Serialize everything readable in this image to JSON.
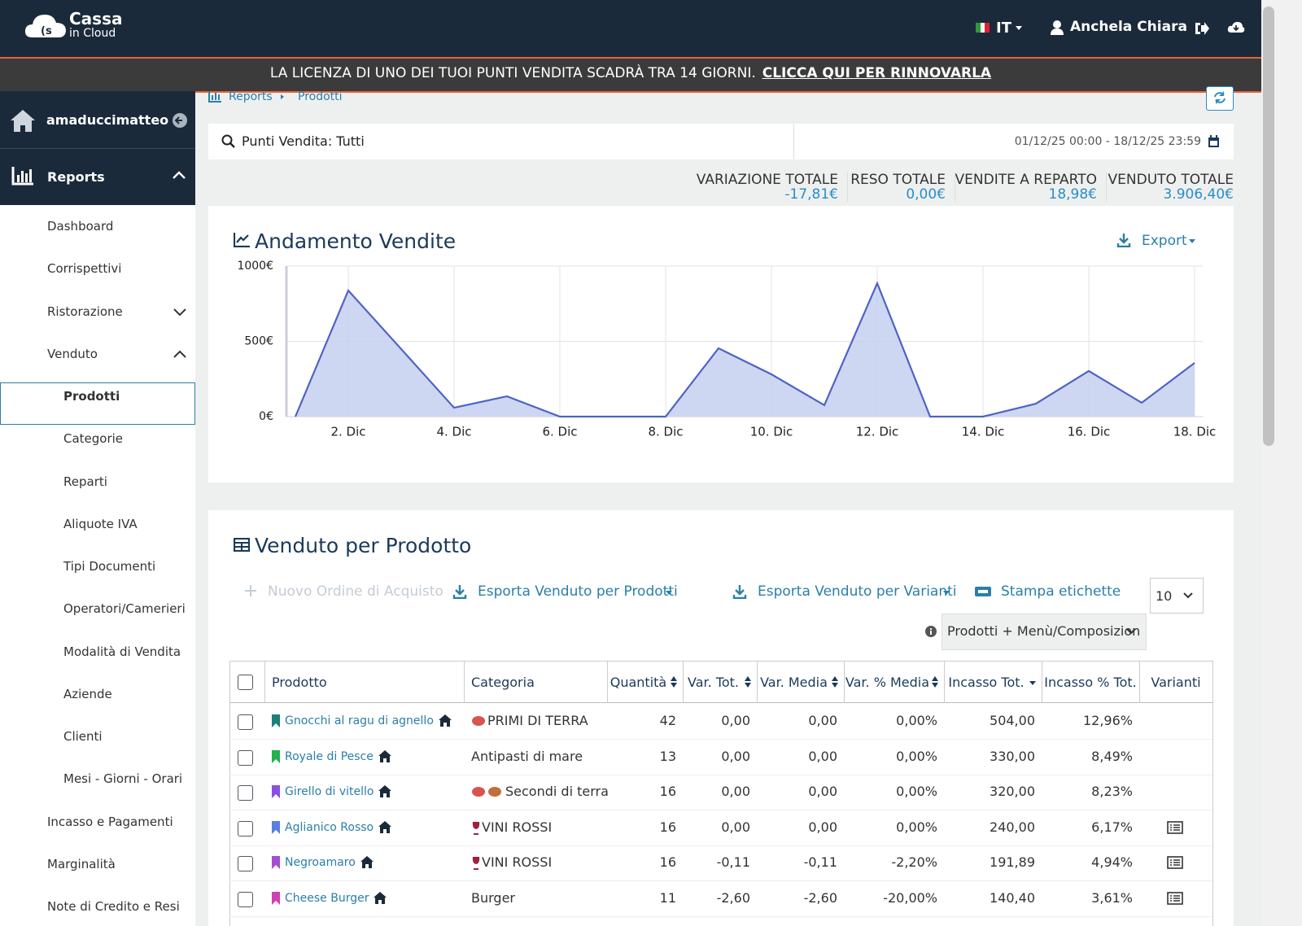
{
  "header": {
    "brand": "Cassa",
    "brand_sub": "in Cloud",
    "language": "IT",
    "user": "Anchela Chiara"
  },
  "banner": {
    "text": "LA LICENZA DI UNO DEI TUOI PUNTI VENDITA SCADRÀ TRA 14 GIORNI.",
    "link": "CLICCA QUI PER RINNOVARLA"
  },
  "sidebar": {
    "account": "amaduccimatteo",
    "section": "Reports",
    "items": [
      {
        "label": "Dashboard"
      },
      {
        "label": "Corrispettivi"
      },
      {
        "label": "Ristorazione",
        "expanded": false
      },
      {
        "label": "Venduto",
        "expanded": true,
        "children": [
          "Prodotti",
          "Categorie",
          "Reparti",
          "Aliquote IVA",
          "Tipi Documenti",
          "Operatori/Camerieri",
          "Modalità di Vendita",
          "Aziende",
          "Clienti",
          "Mesi - Giorni - Orari"
        ]
      },
      {
        "label": "Incasso e Pagamenti"
      },
      {
        "label": "Marginalità"
      },
      {
        "label": "Note di Credito e Resi"
      }
    ]
  },
  "breadcrumb": [
    "Reports",
    "Prodotti"
  ],
  "filter": {
    "search": "Punti Vendita: Tutti",
    "range": "01/12/25 00:00 - 18/12/25 23:59"
  },
  "totals": [
    {
      "label": "VARIAZIONE TOTALE",
      "value": "-17,81€"
    },
    {
      "label": "RESO TOTALE",
      "value": "0,00€"
    },
    {
      "label": "VENDITE A REPARTO",
      "value": "18,98€"
    },
    {
      "label": "VENDUTO TOTALE",
      "value": "3.906,40€"
    }
  ],
  "chart_panel": {
    "export": "Export"
  },
  "chart_data": {
    "type": "area",
    "title": "Andamento Vendite",
    "categories": [
      null,
      "2. Dic",
      null,
      "4. Dic",
      null,
      "6. Dic",
      null,
      "8. Dic",
      null,
      "10. Dic",
      null,
      "12. Dic",
      null,
      "14. Dic",
      null,
      "16. Dic",
      null,
      "18. Dic"
    ],
    "values": [
      0,
      838,
      449,
      59,
      135,
      0,
      0,
      0,
      454,
      281,
      76,
      886,
      0,
      0,
      86,
      303,
      92,
      357
    ],
    "color": "#4f63c4",
    "fill": "#c6d0f0",
    "ylim": [
      0,
      1000
    ],
    "yticks": [
      {
        "value": 0,
        "label": "0€"
      },
      {
        "value": 500,
        "label": "500€"
      },
      {
        "value": 1000,
        "label": "1000€"
      }
    ],
    "grid": true
  },
  "table": {
    "title": "Venduto per Prodotto",
    "actions": [
      "Nuovo Ordine di Acquisto",
      "Esporta Venduto per Prodotti",
      "Esporta Venduto per Varianti",
      "Stampa etichette"
    ],
    "page_size": "10",
    "view": "Prodotti + Menù/Composizion",
    "columns": [
      {
        "label": "Prodotto"
      },
      {
        "label": "Categoria"
      },
      {
        "label": "Quantità",
        "sort": "both"
      },
      {
        "label": "Var. Tot.",
        "sort": "both"
      },
      {
        "label": "Var. Media",
        "sort": "both"
      },
      {
        "label": "Var. % Media",
        "sort": "both"
      },
      {
        "label": "Incasso Tot.",
        "sort": "desc"
      },
      {
        "label": "Incasso % Tot."
      },
      {
        "label": "Varianti"
      }
    ],
    "rows": [
      {
        "color": "#1a7f7a",
        "variants": false,
        "cells": [
          "Gnocchi al ragu di agnello",
          "PRIMI DI TERRA",
          "42",
          "0,00",
          "0,00",
          "0,00%",
          "504,00",
          "12,96%"
        ]
      },
      {
        "color": "#22b14c",
        "variants": false,
        "cells": [
          "Royale di Pesce",
          "Antipasti di mare",
          "13",
          "0,00",
          "0,00",
          "0,00%",
          "330,00",
          "8,49%"
        ]
      },
      {
        "color": "#8a4fe0",
        "variants": false,
        "cells": [
          "Girello di vitello",
          "Secondi di terra",
          "16",
          "0,00",
          "0,00",
          "0,00%",
          "320,00",
          "8,23%"
        ]
      },
      {
        "color": "#5b7fe0",
        "variants": true,
        "cells": [
          "Aglianico Rosso",
          "VINI ROSSI",
          "16",
          "0,00",
          "0,00",
          "0,00%",
          "240,00",
          "6,17%"
        ]
      },
      {
        "color": "#a54fd0",
        "variants": true,
        "cells": [
          "Negroamaro",
          "VINI ROSSI",
          "16",
          "-0,11",
          "-0,11",
          "-2,20%",
          "191,89",
          "4,94%"
        ]
      },
      {
        "color": "#d040b0",
        "variants": true,
        "cells": [
          "Cheese Burger",
          "Burger",
          "11",
          "-2,60",
          "-2,60",
          "-20,00%",
          "140,40",
          "3,61%"
        ]
      }
    ]
  }
}
